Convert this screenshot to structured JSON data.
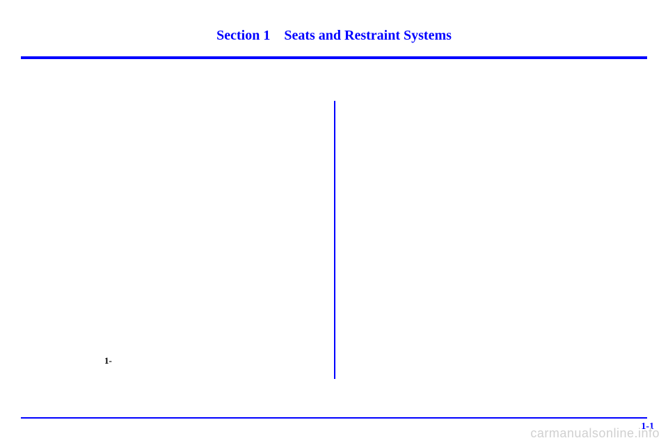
{
  "header": {
    "section_label": "Section 1",
    "section_title": "Seats and Restraint Systems"
  },
  "footer": {
    "left_marker": "1-",
    "page_number": "1-1"
  },
  "watermark": "carmanualsonline.info",
  "colors": {
    "accent": "#0000ff",
    "background": "#ffffff",
    "watermark": "#d0d0d0"
  }
}
